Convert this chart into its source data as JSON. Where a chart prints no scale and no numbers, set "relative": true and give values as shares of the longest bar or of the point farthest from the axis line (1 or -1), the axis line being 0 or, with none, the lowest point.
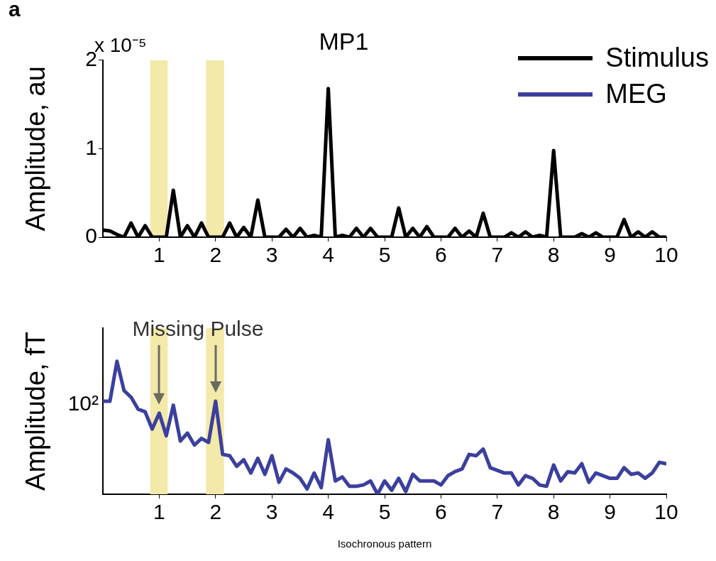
{
  "chart_data": [
    {
      "type": "line",
      "title": "MP1",
      "ylabel": "Amplitude, au",
      "annotations": [
        "a",
        "x 10⁻⁵"
      ],
      "legend": "top right",
      "grid": false,
      "marker": "none",
      "line_style": "solid",
      "x": [
        0,
        0.125,
        0.25,
        0.375,
        0.5,
        0.625,
        0.75,
        0.875,
        1,
        1.125,
        1.25,
        1.375,
        1.5,
        1.625,
        1.75,
        1.875,
        2,
        2.125,
        2.25,
        2.375,
        2.5,
        2.625,
        2.75,
        2.875,
        3,
        3.125,
        3.25,
        3.375,
        3.5,
        3.625,
        3.75,
        3.875,
        4,
        4.125,
        4.25,
        4.375,
        4.5,
        4.625,
        4.75,
        4.875,
        5,
        5.125,
        5.25,
        5.375,
        5.5,
        5.625,
        5.75,
        5.875,
        6,
        6.125,
        6.25,
        6.375,
        6.5,
        6.625,
        6.75,
        6.875,
        7,
        7.125,
        7.25,
        7.375,
        7.5,
        7.625,
        7.75,
        7.875,
        8,
        8.125,
        8.25,
        8.375,
        8.5,
        8.625,
        8.75,
        8.875,
        9,
        9.125,
        9.25,
        9.375,
        9.5,
        9.625,
        9.75,
        9.875,
        10
      ],
      "xlim": [
        0,
        10
      ],
      "xticks": [
        1,
        2,
        3,
        4,
        5,
        6,
        7,
        8,
        9,
        10
      ],
      "ylim": [
        0,
        2
      ],
      "yticks": [
        0,
        1,
        2
      ],
      "bands": [
        {
          "axis": "x",
          "from": 0.84,
          "to": 1.15,
          "color": "#f3e9a9"
        },
        {
          "axis": "x",
          "from": 1.83,
          "to": 2.15,
          "color": "#f3e9a9"
        }
      ],
      "series": [
        {
          "name": "Stimulus",
          "color": "#000000",
          "values": [
            0.08,
            0.07,
            0.03,
            0,
            0.16,
            0,
            0.13,
            0,
            0,
            0,
            0.53,
            0,
            0.13,
            0,
            0.16,
            0,
            0,
            0,
            0.16,
            0,
            0.11,
            0,
            0.42,
            0,
            0,
            0,
            0.09,
            0,
            0.1,
            0,
            0.02,
            0,
            1.68,
            0,
            0.02,
            0,
            0.1,
            0,
            0.1,
            0,
            0,
            0,
            0.33,
            0,
            0.1,
            0,
            0.12,
            0,
            0,
            0,
            0.1,
            0,
            0.07,
            0,
            0.27,
            0,
            0,
            0,
            0.05,
            0,
            0.06,
            0,
            0.02,
            0,
            0.98,
            0,
            0,
            0,
            0.04,
            0,
            0.05,
            0,
            0,
            0,
            0.2,
            0,
            0.06,
            0,
            0.06,
            0,
            0
          ]
        }
      ]
    },
    {
      "type": "line",
      "xlabel": "Isochronous pattern",
      "ylabel": "Amplitude, fT",
      "annotations": [
        "Missing Pulse",
        "10²"
      ],
      "relative": true,
      "legend": "top right",
      "grid": false,
      "marker": "none",
      "line_style": "solid",
      "x": [
        0,
        0.125,
        0.25,
        0.375,
        0.5,
        0.625,
        0.75,
        0.875,
        1,
        1.125,
        1.25,
        1.375,
        1.5,
        1.625,
        1.75,
        1.875,
        2,
        2.125,
        2.25,
        2.375,
        2.5,
        2.625,
        2.75,
        2.875,
        3,
        3.125,
        3.25,
        3.375,
        3.5,
        3.625,
        3.75,
        3.875,
        4,
        4.125,
        4.25,
        4.375,
        4.5,
        4.625,
        4.75,
        4.875,
        5,
        5.125,
        5.25,
        5.375,
        5.5,
        5.625,
        5.75,
        5.875,
        6,
        6.125,
        6.25,
        6.375,
        6.5,
        6.625,
        6.75,
        6.875,
        7,
        7.125,
        7.25,
        7.375,
        7.5,
        7.625,
        7.75,
        7.875,
        8,
        8.125,
        8.25,
        8.375,
        8.5,
        8.625,
        8.75,
        8.875,
        9,
        9.125,
        9.25,
        9.375,
        9.5,
        9.625,
        9.75,
        9.875,
        10
      ],
      "xlim": [
        0,
        10
      ],
      "xticks": [
        1,
        2,
        3,
        4,
        5,
        6,
        7,
        8,
        9,
        10
      ],
      "bands": [
        {
          "axis": "x",
          "from": 0.84,
          "to": 1.15,
          "color": "#f3e9a9"
        },
        {
          "axis": "x",
          "from": 1.83,
          "to": 2.15,
          "color": "#f3e9a9"
        }
      ],
      "series": [
        {
          "name": "MEG",
          "color": "#3b3f9e",
          "values": [
            0.7,
            0.7,
            1,
            0.78,
            0.73,
            0.64,
            0.62,
            0.49,
            0.61,
            0.44,
            0.67,
            0.4,
            0.46,
            0.37,
            0.42,
            0.39,
            0.7,
            0.3,
            0.29,
            0.21,
            0.26,
            0.16,
            0.27,
            0.15,
            0.29,
            0.09,
            0.19,
            0.16,
            0.12,
            0.04,
            0.16,
            0.05,
            0.41,
            0.1,
            0.13,
            0.06,
            0.06,
            0.07,
            0.1,
            0,
            0.1,
            0.03,
            0.12,
            0.02,
            0.15,
            0.1,
            0.1,
            0.1,
            0.07,
            0.14,
            0.17,
            0.19,
            0.3,
            0.29,
            0.34,
            0.2,
            0.18,
            0.16,
            0.16,
            0.07,
            0.14,
            0.12,
            0.07,
            0.06,
            0.22,
            0.1,
            0.17,
            0.16,
            0.23,
            0.09,
            0.16,
            0.14,
            0.12,
            0.12,
            0.2,
            0.15,
            0.16,
            0.12,
            0.16,
            0.24,
            0.23
          ]
        }
      ]
    }
  ]
}
